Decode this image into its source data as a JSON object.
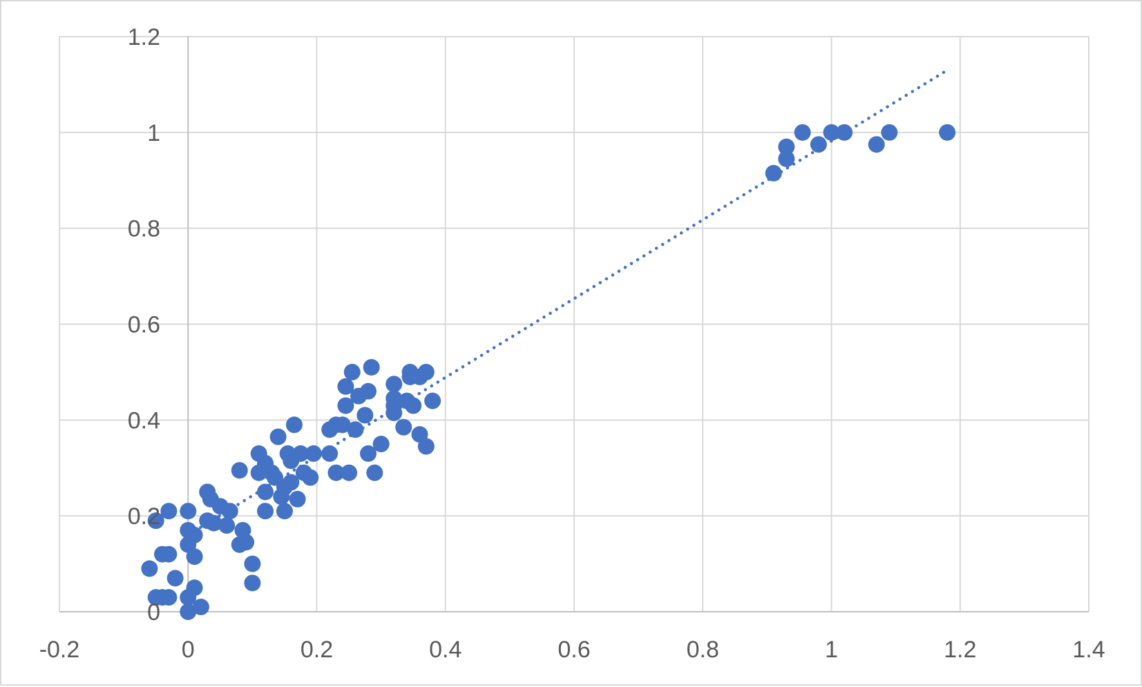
{
  "chart_data": {
    "type": "scatter",
    "title": "",
    "xlabel": "",
    "ylabel": "",
    "xlim": [
      -0.2,
      1.4
    ],
    "ylim": [
      0,
      1.2
    ],
    "x_ticks": [
      -0.2,
      0,
      0.2,
      0.4,
      0.6,
      0.8,
      1,
      1.2,
      1.4
    ],
    "y_ticks": [
      0,
      0.2,
      0.4,
      0.6,
      0.8,
      1,
      1.2
    ],
    "x_tick_labels": [
      "-0.2",
      "0",
      "0.2",
      "0.4",
      "0.6",
      "0.8",
      "1",
      "1.2",
      "1.4"
    ],
    "y_tick_labels": [
      "0",
      "0.2",
      "0.4",
      "0.6",
      "0.8",
      "1",
      "1.2"
    ],
    "grid": true,
    "legend": "none",
    "marker_color": "#4472C4",
    "trendline": {
      "type": "linear",
      "style": "dotted",
      "color": "#4472C4",
      "x_range": [
        0,
        1.18
      ],
      "y_at_start": 0.16,
      "y_at_end": 1.13
    },
    "series": [
      {
        "points": [
          [
            -0.06,
            0.09
          ],
          [
            -0.05,
            0.03
          ],
          [
            -0.05,
            0.19
          ],
          [
            -0.04,
            0.12
          ],
          [
            -0.04,
            0.03
          ],
          [
            -0.03,
            0.12
          ],
          [
            -0.03,
            0.21
          ],
          [
            -0.03,
            0.03
          ],
          [
            -0.02,
            0.07
          ],
          [
            0.0,
            0.0
          ],
          [
            0.0,
            0.14
          ],
          [
            0.0,
            0.17
          ],
          [
            0.0,
            0.21
          ],
          [
            0.0,
            0.03
          ],
          [
            0.01,
            0.16
          ],
          [
            0.01,
            0.115
          ],
          [
            0.01,
            0.05
          ],
          [
            0.02,
            0.01
          ],
          [
            0.03,
            0.25
          ],
          [
            0.03,
            0.19
          ],
          [
            0.035,
            0.235
          ],
          [
            0.04,
            0.185
          ],
          [
            0.05,
            0.22
          ],
          [
            0.06,
            0.18
          ],
          [
            0.065,
            0.21
          ],
          [
            0.08,
            0.14
          ],
          [
            0.08,
            0.295
          ],
          [
            0.085,
            0.17
          ],
          [
            0.09,
            0.145
          ],
          [
            0.1,
            0.1
          ],
          [
            0.1,
            0.06
          ],
          [
            0.11,
            0.33
          ],
          [
            0.11,
            0.29
          ],
          [
            0.12,
            0.31
          ],
          [
            0.12,
            0.25
          ],
          [
            0.12,
            0.21
          ],
          [
            0.13,
            0.29
          ],
          [
            0.135,
            0.28
          ],
          [
            0.14,
            0.365
          ],
          [
            0.145,
            0.24
          ],
          [
            0.15,
            0.26
          ],
          [
            0.15,
            0.21
          ],
          [
            0.155,
            0.33
          ],
          [
            0.16,
            0.27
          ],
          [
            0.16,
            0.315
          ],
          [
            0.165,
            0.39
          ],
          [
            0.17,
            0.235
          ],
          [
            0.175,
            0.33
          ],
          [
            0.18,
            0.29
          ],
          [
            0.19,
            0.28
          ],
          [
            0.195,
            0.33
          ],
          [
            0.22,
            0.33
          ],
          [
            0.22,
            0.38
          ],
          [
            0.23,
            0.29
          ],
          [
            0.23,
            0.39
          ],
          [
            0.24,
            0.39
          ],
          [
            0.245,
            0.47
          ],
          [
            0.245,
            0.43
          ],
          [
            0.25,
            0.29
          ],
          [
            0.255,
            0.5
          ],
          [
            0.26,
            0.38
          ],
          [
            0.265,
            0.45
          ],
          [
            0.275,
            0.41
          ],
          [
            0.28,
            0.46
          ],
          [
            0.28,
            0.33
          ],
          [
            0.285,
            0.51
          ],
          [
            0.29,
            0.29
          ],
          [
            0.3,
            0.35
          ],
          [
            0.32,
            0.475
          ],
          [
            0.32,
            0.445
          ],
          [
            0.32,
            0.43
          ],
          [
            0.32,
            0.415
          ],
          [
            0.335,
            0.385
          ],
          [
            0.34,
            0.44
          ],
          [
            0.345,
            0.5
          ],
          [
            0.345,
            0.49
          ],
          [
            0.35,
            0.43
          ],
          [
            0.36,
            0.49
          ],
          [
            0.36,
            0.37
          ],
          [
            0.37,
            0.5
          ],
          [
            0.37,
            0.345
          ],
          [
            0.38,
            0.44
          ],
          [
            0.91,
            0.915
          ],
          [
            0.93,
            0.97
          ],
          [
            0.93,
            0.945
          ],
          [
            0.955,
            1.0
          ],
          [
            0.98,
            0.975
          ],
          [
            1.0,
            1.0
          ],
          [
            1.02,
            1.0
          ],
          [
            1.07,
            0.975
          ],
          [
            1.09,
            1.0
          ],
          [
            1.18,
            1.0
          ]
        ]
      }
    ]
  }
}
